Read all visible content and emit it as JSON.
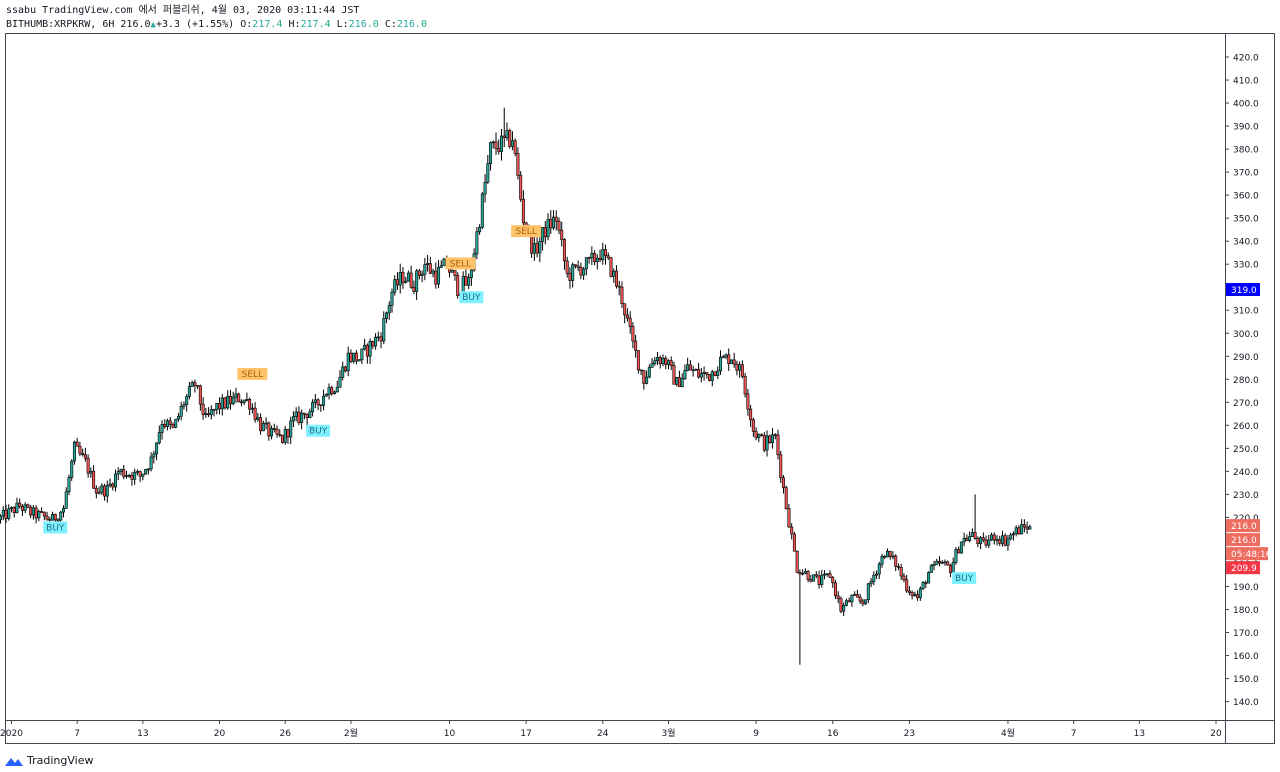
{
  "header": {
    "publish_line": "ssabu TradingView.com 에서 퍼블리쉬, 4월 03, 2020 03:11:44 JST",
    "symbol": "BITHUMB:XRPKRW, 6H",
    "last": "216.0",
    "change": "+3.3 (+1.55%)",
    "o_label": "O:",
    "o_value": "217.4",
    "h_label": "H:",
    "h_value": "217.4",
    "l_label": "L:",
    "l_value": "216.0",
    "c_label": "C:",
    "c_value": "216.0"
  },
  "brand": {
    "name": "TradingView",
    "icon": "tradingview-logo-icon"
  },
  "colors": {
    "up": "#26a69a",
    "down": "#ef5350",
    "candle_body_up": "#ffffff",
    "candle_outline": "#000000",
    "buy_label_bg": "#7ff0ff",
    "sell_label_bg": "#ffc36b",
    "blue_tag": "#0000ff",
    "red_tag": "#f23645",
    "salmon_tag": "#ef6c60"
  },
  "price_tags": [
    {
      "id": "blue",
      "text": "319.0",
      "price": 319.0,
      "color": "#0000ff"
    },
    {
      "id": "last1",
      "text": "216.0",
      "price": 216.0,
      "color": "#ef6c60"
    },
    {
      "id": "last2",
      "text": "216.0",
      "price": 216.0,
      "color": "#ef6c60"
    },
    {
      "id": "countdown",
      "text": "05:48:16",
      "price": 216.0,
      "color": "#ef6c60"
    },
    {
      "id": "red",
      "text": "209.9",
      "price": 209.9,
      "color": "#f23645"
    }
  ],
  "chart_data": {
    "type": "candlestick",
    "title": "",
    "xlabel": "",
    "ylabel": "",
    "ylim": [
      132,
      430
    ],
    "grid": false,
    "y_ticks": [
      420.0,
      410.0,
      400.0,
      390.0,
      380.0,
      370.0,
      360.0,
      350.0,
      340.0,
      330.0,
      320.0,
      310.0,
      300.0,
      290.0,
      280.0,
      270.0,
      260.0,
      250.0,
      240.0,
      230.0,
      220.0,
      210.0,
      200.0,
      190.0,
      180.0,
      170.0,
      160.0,
      150.0,
      140.0
    ],
    "x_ticks": [
      {
        "label": "2020",
        "date": "2020-01-01"
      },
      {
        "label": "7",
        "date": "2020-01-07"
      },
      {
        "label": "13",
        "date": "2020-01-13"
      },
      {
        "label": "20",
        "date": "2020-01-20"
      },
      {
        "label": "26",
        "date": "2020-01-26"
      },
      {
        "label": "2월",
        "date": "2020-02-01"
      },
      {
        "label": "10",
        "date": "2020-02-10"
      },
      {
        "label": "17",
        "date": "2020-02-17"
      },
      {
        "label": "24",
        "date": "2020-02-24"
      },
      {
        "label": "3월",
        "date": "2020-03-01"
      },
      {
        "label": "9",
        "date": "2020-03-09"
      },
      {
        "label": "16",
        "date": "2020-03-16"
      },
      {
        "label": "23",
        "date": "2020-03-23"
      },
      {
        "label": "4월",
        "date": "2020-04-01"
      },
      {
        "label": "7",
        "date": "2020-04-07"
      },
      {
        "label": "13",
        "date": "2020-04-13"
      },
      {
        "label": "20",
        "date": "2020-04-20"
      }
    ],
    "price_path": [
      [
        "2019-12-31",
        219
      ],
      [
        "2020-01-02",
        225
      ],
      [
        "2020-01-03",
        222
      ],
      [
        "2020-01-05",
        219
      ],
      [
        "2020-01-06",
        224
      ],
      [
        "2020-01-07",
        250
      ],
      [
        "2020-01-08",
        244
      ],
      [
        "2020-01-09",
        232
      ],
      [
        "2020-01-10",
        232
      ],
      [
        "2020-01-11",
        240
      ],
      [
        "2020-01-13",
        238
      ],
      [
        "2020-01-14",
        245
      ],
      [
        "2020-01-15",
        262
      ],
      [
        "2020-01-16",
        258
      ],
      [
        "2020-01-17",
        270
      ],
      [
        "2020-01-18",
        278
      ],
      [
        "2020-01-19",
        262
      ],
      [
        "2020-01-20",
        268
      ],
      [
        "2020-01-22",
        272
      ],
      [
        "2020-01-23",
        270
      ],
      [
        "2020-01-24",
        260
      ],
      [
        "2020-01-25",
        256
      ],
      [
        "2020-01-26",
        254
      ],
      [
        "2020-01-27",
        262
      ],
      [
        "2020-01-28",
        265
      ],
      [
        "2020-01-29",
        268
      ],
      [
        "2020-01-30",
        275
      ],
      [
        "2020-01-31",
        278
      ],
      [
        "2020-02-01",
        290
      ],
      [
        "2020-02-02",
        289
      ],
      [
        "2020-02-04",
        300
      ],
      [
        "2020-02-05",
        318
      ],
      [
        "2020-02-06",
        325
      ],
      [
        "2020-02-07",
        322
      ],
      [
        "2020-02-08",
        330
      ],
      [
        "2020-02-09",
        325
      ],
      [
        "2020-02-10",
        330
      ],
      [
        "2020-02-11",
        320
      ],
      [
        "2020-02-12",
        322
      ],
      [
        "2020-02-13",
        350
      ],
      [
        "2020-02-14",
        380
      ],
      [
        "2020-02-15",
        382
      ],
      [
        "2020-02-16",
        385
      ],
      [
        "2020-02-17",
        350
      ],
      [
        "2020-02-18",
        335
      ],
      [
        "2020-02-19",
        345
      ],
      [
        "2020-02-20",
        350
      ],
      [
        "2020-02-21",
        325
      ],
      [
        "2020-02-22",
        328
      ],
      [
        "2020-02-23",
        330
      ],
      [
        "2020-02-24",
        335
      ],
      [
        "2020-02-25",
        328
      ],
      [
        "2020-02-26",
        315
      ],
      [
        "2020-02-27",
        295
      ],
      [
        "2020-02-28",
        280
      ],
      [
        "2020-02-29",
        290
      ],
      [
        "2020-03-01",
        288
      ],
      [
        "2020-03-02",
        278
      ],
      [
        "2020-03-03",
        285
      ],
      [
        "2020-03-04",
        282
      ],
      [
        "2020-03-05",
        282
      ],
      [
        "2020-03-06",
        288
      ],
      [
        "2020-03-07",
        290
      ],
      [
        "2020-03-08",
        282
      ],
      [
        "2020-03-09",
        258
      ],
      [
        "2020-03-10",
        252
      ],
      [
        "2020-03-11",
        255
      ],
      [
        "2020-03-12",
        225
      ],
      [
        "2020-03-13",
        198
      ],
      [
        "2020-03-14",
        195
      ],
      [
        "2020-03-15",
        192
      ],
      [
        "2020-03-16",
        195
      ],
      [
        "2020-03-17",
        180
      ],
      [
        "2020-03-18",
        185
      ],
      [
        "2020-03-19",
        183
      ],
      [
        "2020-03-20",
        195
      ],
      [
        "2020-03-21",
        205
      ],
      [
        "2020-03-22",
        200
      ],
      [
        "2020-03-23",
        190
      ],
      [
        "2020-03-24",
        185
      ],
      [
        "2020-03-25",
        196
      ],
      [
        "2020-03-26",
        200
      ],
      [
        "2020-03-27",
        198
      ],
      [
        "2020-03-28",
        210
      ],
      [
        "2020-03-29",
        212
      ],
      [
        "2020-03-30",
        208
      ],
      [
        "2020-03-31",
        212
      ],
      [
        "2020-04-01",
        210
      ],
      [
        "2020-04-02",
        214
      ],
      [
        "2020-04-03",
        216
      ]
    ],
    "annotations": [
      {
        "text": "BUY",
        "kind": "buy",
        "date": "2020-01-05",
        "price": 220
      },
      {
        "text": "SELL",
        "kind": "sell",
        "date": "2020-01-23",
        "price": 278
      },
      {
        "text": "BUY",
        "kind": "buy",
        "date": "2020-01-29",
        "price": 262
      },
      {
        "text": "SELL",
        "kind": "sell",
        "date": "2020-02-11",
        "price": 326
      },
      {
        "text": "BUY",
        "kind": "buy",
        "date": "2020-02-12",
        "price": 320
      },
      {
        "text": "SELL",
        "kind": "sell",
        "date": "2020-02-17",
        "price": 340
      },
      {
        "text": "BUY",
        "kind": "buy",
        "date": "2020-03-28",
        "price": 198
      }
    ],
    "extremes": [
      {
        "date": "2020-02-15",
        "high": 398
      },
      {
        "date": "2020-03-13",
        "low": 156
      },
      {
        "date": "2020-03-29",
        "high": 230
      }
    ]
  }
}
